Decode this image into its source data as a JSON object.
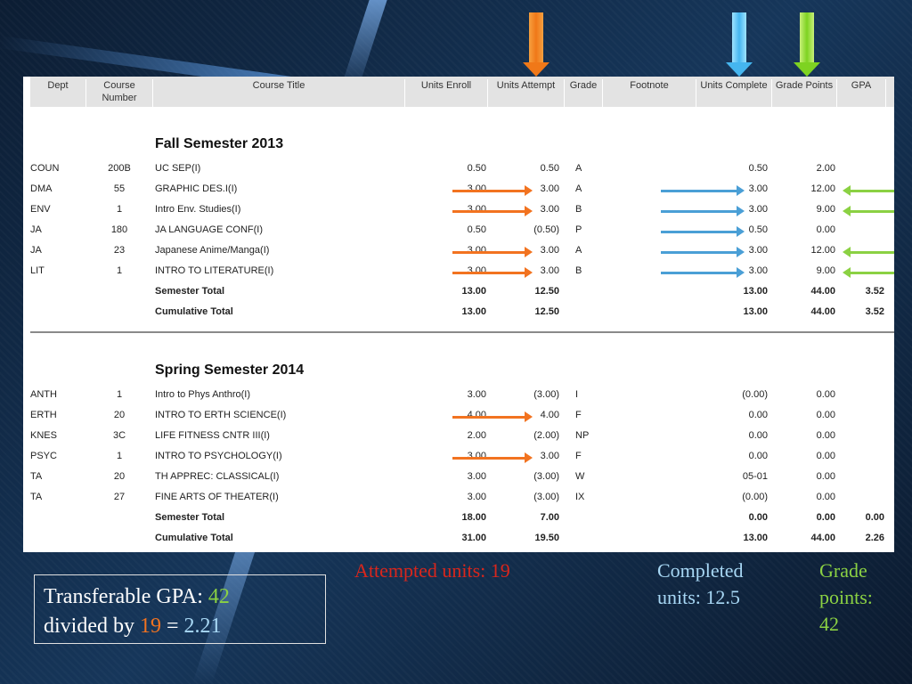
{
  "columns": [
    {
      "label": "Dept"
    },
    {
      "label": "Course\nNumber"
    },
    {
      "label": "Course Title"
    },
    {
      "label": "Units Enroll"
    },
    {
      "label": "Units Attempt"
    },
    {
      "label": "Grade"
    },
    {
      "label": "Footnote"
    },
    {
      "label": "Units Complete"
    },
    {
      "label": "Grade Points"
    },
    {
      "label": "GPA"
    }
  ],
  "fall": {
    "title": "Fall Semester 2013",
    "rows": [
      {
        "dept": "COUN",
        "num": "200B",
        "title": "UC SEP(I)",
        "enroll": "0.50",
        "attempt": "0.50",
        "grade": "A",
        "complete": "0.50",
        "points": "2.00"
      },
      {
        "dept": "DMA",
        "num": "55",
        "title": "GRAPHIC DES.I(I)",
        "enroll": "3.00",
        "attempt": "3.00",
        "grade": "A",
        "complete": "3.00",
        "points": "12.00"
      },
      {
        "dept": "ENV",
        "num": "1",
        "title": "Intro Env. Studies(I)",
        "enroll": "3.00",
        "attempt": "3.00",
        "grade": "B",
        "complete": "3.00",
        "points": "9.00"
      },
      {
        "dept": "JA",
        "num": "180",
        "title": "JA LANGUAGE CONF(I)",
        "enroll": "0.50",
        "attempt": "(0.50)",
        "grade": "P",
        "complete": "0.50",
        "points": "0.00"
      },
      {
        "dept": "JA",
        "num": "23",
        "title": "Japanese Anime/Manga(I)",
        "enroll": "3.00",
        "attempt": "3.00",
        "grade": "A",
        "complete": "3.00",
        "points": "12.00"
      },
      {
        "dept": "LIT",
        "num": "1",
        "title": "INTRO TO LITERATURE(I)",
        "enroll": "3.00",
        "attempt": "3.00",
        "grade": "B",
        "complete": "3.00",
        "points": "9.00"
      }
    ],
    "semester_total": {
      "label": "Semester Total",
      "enroll": "13.00",
      "attempt": "12.50",
      "complete": "13.00",
      "points": "44.00",
      "gpa": "3.52"
    },
    "cumulative_total": {
      "label": "Cumulative Total",
      "enroll": "13.00",
      "attempt": "12.50",
      "complete": "13.00",
      "points": "44.00",
      "gpa": "3.52"
    }
  },
  "spring": {
    "title": "Spring Semester 2014",
    "rows": [
      {
        "dept": "ANTH",
        "num": "1",
        "title": "Intro to Phys Anthro(I)",
        "enroll": "3.00",
        "attempt": "(3.00)",
        "grade": "I",
        "complete": "(0.00)",
        "points": "0.00"
      },
      {
        "dept": "ERTH",
        "num": "20",
        "title": "INTRO TO ERTH SCIENCE(I)",
        "enroll": "4.00",
        "attempt": "4.00",
        "grade": "F",
        "complete": "0.00",
        "points": "0.00"
      },
      {
        "dept": "KNES",
        "num": "3C",
        "title": "LIFE FITNESS CNTR III(I)",
        "enroll": "2.00",
        "attempt": "(2.00)",
        "grade": "NP",
        "complete": "0.00",
        "points": "0.00"
      },
      {
        "dept": "PSYC",
        "num": "1",
        "title": "INTRO TO PSYCHOLOGY(I)",
        "enroll": "3.00",
        "attempt": "3.00",
        "grade": "F",
        "complete": "0.00",
        "points": "0.00"
      },
      {
        "dept": "TA",
        "num": "20",
        "title": "TH APPREC: CLASSICAL(I)",
        "enroll": "3.00",
        "attempt": "(3.00)",
        "grade": "W",
        "complete": "05-01",
        "points": "0.00"
      },
      {
        "dept": "TA",
        "num": "27",
        "title": "FINE ARTS OF THEATER(I)",
        "enroll": "3.00",
        "attempt": "(3.00)",
        "grade": "IX",
        "complete": "(0.00)",
        "points": "0.00"
      }
    ],
    "semester_total": {
      "label": "Semester Total",
      "enroll": "18.00",
      "attempt": "7.00",
      "complete": "0.00",
      "points": "0.00",
      "gpa": "0.00"
    },
    "cumulative_total": {
      "label": "Cumulative Total",
      "enroll": "31.00",
      "attempt": "19.50",
      "complete": "13.00",
      "points": "44.00",
      "gpa": "2.26"
    }
  },
  "captions": {
    "attempted": "Attempted units:  19",
    "completed_line1": "Completed",
    "completed_line2": "units:  12.5",
    "grade_line1": "Grade",
    "grade_line2": "points:",
    "grade_line3": "42"
  },
  "gpa_box": {
    "part1": "Transferable GPA:  ",
    "points": "42",
    "part2": "divided by ",
    "units": "19",
    "equals": " = ",
    "result": "2.21"
  },
  "colors": {
    "orange": "#f27320",
    "blue": "#4a9fd6",
    "green": "#8bd143",
    "red": "#d9261c"
  }
}
